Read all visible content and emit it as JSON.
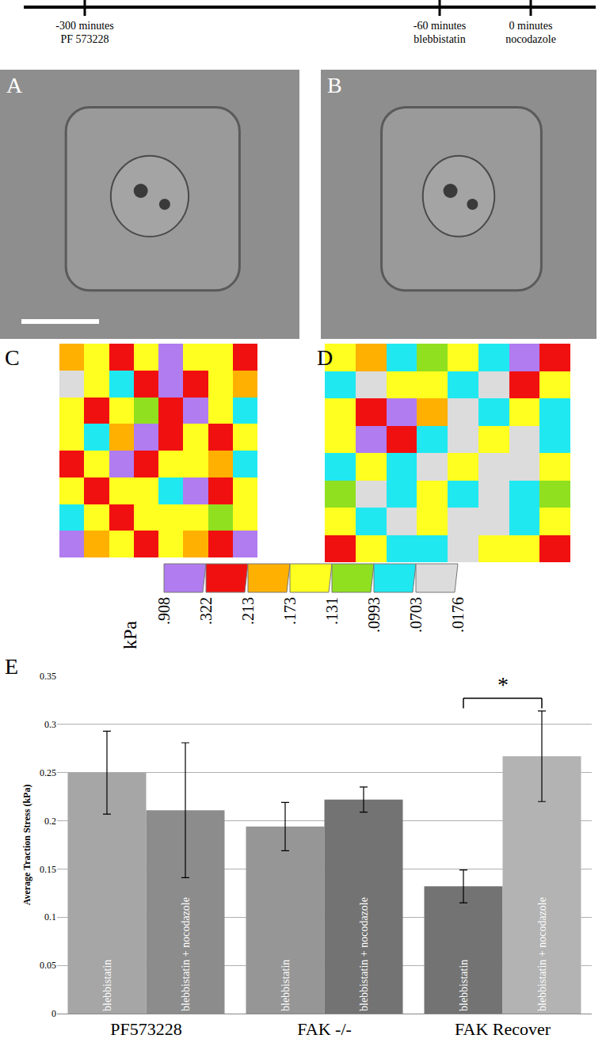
{
  "timeline": [
    {
      "time": "-300 minutes",
      "drug": "PF 573228"
    },
    {
      "time": "-60 minutes",
      "drug": "blebbistatin"
    },
    {
      "time": "0 minutes",
      "drug": "nocodazole"
    }
  ],
  "photos": [
    {
      "label": "A",
      "scale_bar": true
    },
    {
      "label": "B",
      "scale_bar": false
    }
  ],
  "color_key": {
    "unit": "kPa",
    "levels": [
      {
        "value": 0.908,
        "label": ".908"
      },
      {
        "value": 0.322,
        "label": ".322"
      },
      {
        "value": 0.213,
        "label": ".213"
      },
      {
        "value": 0.173,
        "label": ".173"
      },
      {
        "value": 0.131,
        "label": ".131"
      },
      {
        "value": 0.0993,
        "label": ".0993"
      },
      {
        "value": 0.0703,
        "label": ".0703"
      },
      {
        "value": 0.0176,
        "label": ".0176"
      }
    ],
    "colors": [
      "#b07cf0",
      "#f01010",
      "#ffb000",
      "#ffff20",
      "#90e020",
      "#20e8f0",
      "#dcdcdc"
    ]
  },
  "chart_data": [
    {
      "type": "heatmap",
      "label": "C",
      "tick_labels": false,
      "zlim": [
        0.0176,
        0.908
      ],
      "z": [
        [
          0.19,
          0.15,
          0.25,
          0.17,
          0.4,
          0.16,
          0.14,
          0.3
        ],
        [
          0.05,
          0.14,
          0.09,
          0.26,
          0.5,
          0.25,
          0.16,
          0.19
        ],
        [
          0.16,
          0.27,
          0.15,
          0.12,
          0.28,
          0.45,
          0.17,
          0.09
        ],
        [
          0.14,
          0.09,
          0.18,
          0.45,
          0.26,
          0.15,
          0.27,
          0.15
        ],
        [
          0.26,
          0.16,
          0.5,
          0.3,
          0.14,
          0.16,
          0.19,
          0.08
        ],
        [
          0.16,
          0.28,
          0.14,
          0.16,
          0.09,
          0.45,
          0.25,
          0.14
        ],
        [
          0.08,
          0.17,
          0.26,
          0.14,
          0.16,
          0.15,
          0.12,
          0.17
        ],
        [
          0.4,
          0.19,
          0.15,
          0.3,
          0.15,
          0.19,
          0.26,
          0.45
        ]
      ]
    },
    {
      "type": "heatmap",
      "label": "D",
      "tick_labels": false,
      "zlim": [
        0.0176,
        0.908
      ],
      "z": [
        [
          0.15,
          0.18,
          0.08,
          0.12,
          0.16,
          0.09,
          0.4,
          0.3
        ],
        [
          0.09,
          0.05,
          0.14,
          0.16,
          0.08,
          0.05,
          0.26,
          0.15
        ],
        [
          0.16,
          0.25,
          0.45,
          0.19,
          0.05,
          0.09,
          0.14,
          0.08
        ],
        [
          0.14,
          0.4,
          0.27,
          0.09,
          0.05,
          0.16,
          0.05,
          0.09
        ],
        [
          0.08,
          0.16,
          0.09,
          0.05,
          0.14,
          0.05,
          0.05,
          0.15
        ],
        [
          0.12,
          0.05,
          0.08,
          0.15,
          0.09,
          0.05,
          0.08,
          0.12
        ],
        [
          0.16,
          0.09,
          0.05,
          0.16,
          0.05,
          0.05,
          0.09,
          0.14
        ],
        [
          0.25,
          0.14,
          0.09,
          0.08,
          0.05,
          0.15,
          0.14,
          0.26
        ]
      ]
    },
    {
      "type": "bar",
      "label": "E",
      "y_label": "Average Traction Stress (kPa)",
      "categories": [
        "PF573228",
        "FAK -/-",
        "FAK Recover"
      ],
      "series": [
        {
          "name": "blebbistatin",
          "values": [
            0.25,
            0.194,
            0.132
          ],
          "errors": [
            0.043,
            0.025,
            0.017
          ],
          "colors": [
            "#a6a6a6",
            "#969696",
            "#737373"
          ]
        },
        {
          "name": "blebbistatin + nocodazole",
          "values": [
            0.211,
            0.222,
            0.267
          ],
          "errors": [
            0.07,
            0.013,
            0.047
          ],
          "colors": [
            "#8c8c8c",
            "#737373",
            "#b3b3b3"
          ]
        }
      ],
      "ylim": [
        0,
        0.35
      ],
      "yticks": [
        0,
        0.05,
        0.1,
        0.15,
        0.2,
        0.25,
        0.3,
        0.35
      ],
      "grid": true,
      "significance": {
        "category": "FAK Recover",
        "label": "*"
      }
    }
  ]
}
